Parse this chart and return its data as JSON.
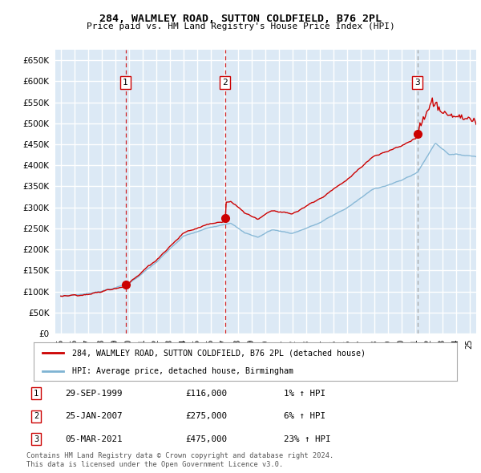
{
  "title": "284, WALMLEY ROAD, SUTTON COLDFIELD, B76 2PL",
  "subtitle": "Price paid vs. HM Land Registry's House Price Index (HPI)",
  "legend_label_red": "284, WALMLEY ROAD, SUTTON COLDFIELD, B76 2PL (detached house)",
  "legend_label_blue": "HPI: Average price, detached house, Birmingham",
  "transactions": [
    {
      "num": 1,
      "date_x": 1999.75,
      "price": 116000,
      "date_str": "29-SEP-1999",
      "pct": "1%"
    },
    {
      "num": 2,
      "date_x": 2007.07,
      "price": 275000,
      "date_str": "25-JAN-2007",
      "pct": "6%"
    },
    {
      "num": 3,
      "date_x": 2021.18,
      "price": 475000,
      "date_str": "05-MAR-2021",
      "pct": "23%"
    }
  ],
  "footer1": "Contains HM Land Registry data © Crown copyright and database right 2024.",
  "footer2": "This data is licensed under the Open Government Licence v3.0.",
  "ylim": [
    0,
    675000
  ],
  "yticks": [
    0,
    50000,
    100000,
    150000,
    200000,
    250000,
    300000,
    350000,
    400000,
    450000,
    500000,
    550000,
    600000,
    650000
  ],
  "xlim_start": 1994.6,
  "xlim_end": 2025.5,
  "bg_color": "#dce9f5",
  "grid_color": "#ffffff",
  "red_color": "#cc0000",
  "blue_color": "#7fb3d3",
  "vline_color_red": "#cc0000",
  "vline_color_grey": "#999999"
}
